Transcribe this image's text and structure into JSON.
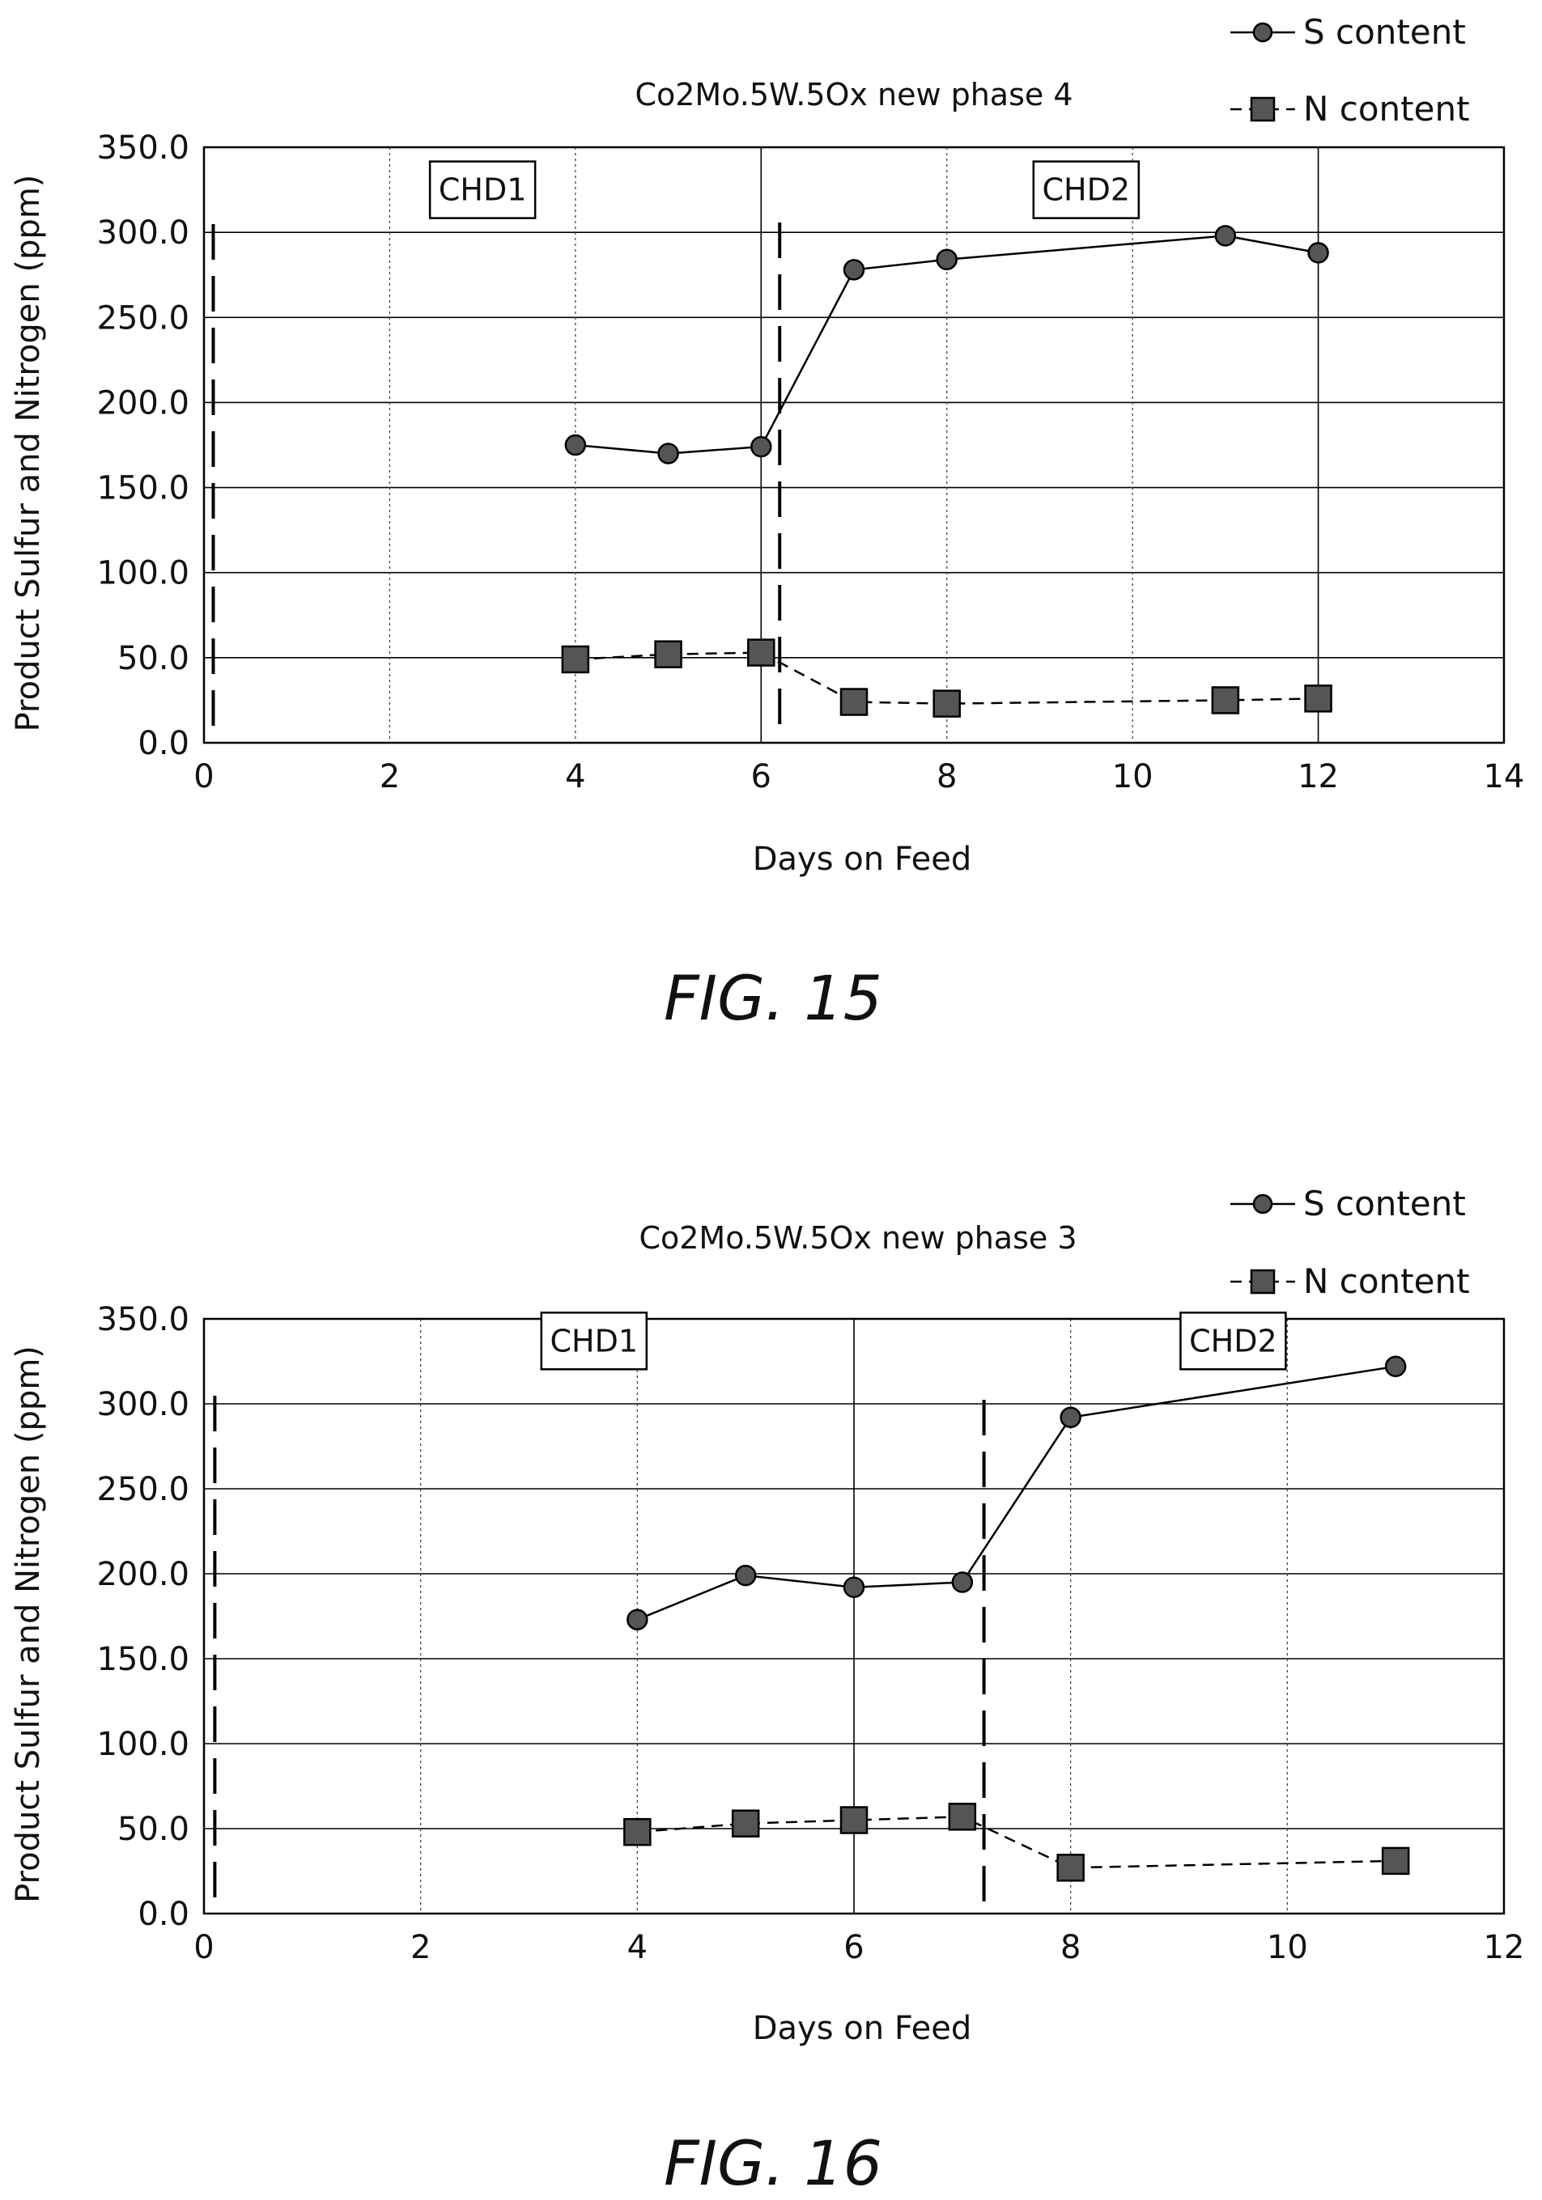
{
  "chart_data": [
    {
      "type": "line",
      "title": "Co2Mo.5W.5Ox new phase 4",
      "caption": "FIG. 15",
      "xlabel": "Days on Feed",
      "ylabel": "Product Sulfur and Nitrogen (ppm)",
      "xlim": [
        0,
        14
      ],
      "ylim": [
        0,
        350
      ],
      "xticks": [
        "0",
        "2",
        "4",
        "6",
        "8",
        "10",
        "12",
        "14"
      ],
      "yticks": [
        "0.0",
        "50.0",
        "100.0",
        "150.0",
        "200.0",
        "250.0",
        "300.0",
        "350.0"
      ],
      "grid": true,
      "legend_position": "top-right",
      "series": [
        {
          "name": "S content",
          "marker": "circle",
          "line": "solid",
          "x": [
            4,
            5,
            6,
            7,
            8,
            11,
            12
          ],
          "y": [
            175,
            170,
            174,
            278,
            284,
            298,
            288
          ]
        },
        {
          "name": "N content",
          "marker": "square",
          "line": "dashed",
          "x": [
            4,
            5,
            6,
            7,
            8,
            11,
            12
          ],
          "y": [
            49,
            52,
            53,
            24,
            23,
            25,
            26
          ]
        }
      ],
      "regions": [
        {
          "label": "CHD1",
          "x": 3,
          "y": 325
        },
        {
          "label": "CHD2",
          "x": 9.5,
          "y": 325
        }
      ],
      "dividers": [
        0.1,
        6.2
      ]
    },
    {
      "type": "line",
      "title": "Co2Mo.5W.5Ox new phase 3",
      "caption": "FIG. 16",
      "xlabel": "Days on Feed",
      "ylabel": "Product Sulfur and Nitrogen (ppm)",
      "xlim": [
        0,
        12
      ],
      "ylim": [
        0,
        350
      ],
      "xticks": [
        "0",
        "2",
        "4",
        "6",
        "8",
        "10",
        "12"
      ],
      "yticks": [
        "0.0",
        "50.0",
        "100.0",
        "150.0",
        "200.0",
        "250.0",
        "300.0",
        "350.0"
      ],
      "grid": true,
      "legend_position": "top-right",
      "series": [
        {
          "name": "S content",
          "marker": "circle",
          "line": "solid",
          "x": [
            4,
            5,
            6,
            7,
            8,
            11
          ],
          "y": [
            173,
            199,
            192,
            195,
            292,
            322
          ]
        },
        {
          "name": "N content",
          "marker": "square",
          "line": "dashed",
          "x": [
            4,
            5,
            6,
            7,
            8,
            11
          ],
          "y": [
            48,
            53,
            55,
            57,
            27,
            31
          ]
        }
      ],
      "regions": [
        {
          "label": "CHD1",
          "x": 3.6,
          "y": 337
        },
        {
          "label": "CHD2",
          "x": 9.5,
          "y": 337
        }
      ],
      "dividers": [
        0.1,
        7.2
      ]
    }
  ]
}
